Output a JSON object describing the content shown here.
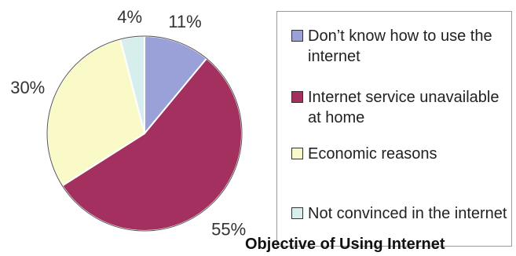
{
  "chart_data": {
    "type": "pie",
    "title": "",
    "categories": [
      "Don’t know how to use the internet",
      "Internet service unavailable at home",
      "Economic reasons",
      "Not convinced in the internet"
    ],
    "values": [
      11,
      55,
      30,
      4
    ],
    "labels": [
      "11%",
      "55%",
      "30%",
      "4%"
    ],
    "colors": [
      "#9aa0d8",
      "#a3305e",
      "#fafac8",
      "#d6eeee"
    ],
    "legend_position": "right"
  },
  "footer": {
    "text": "Objective of Using Internet"
  }
}
